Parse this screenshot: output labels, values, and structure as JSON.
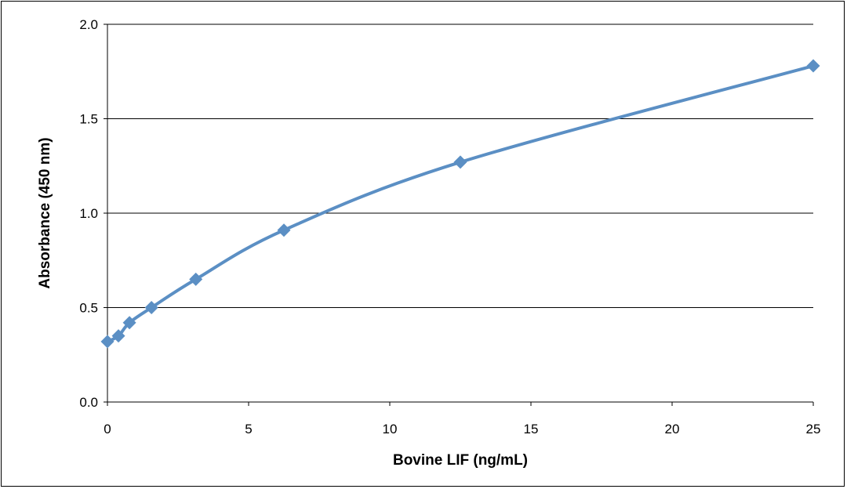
{
  "chart_data": {
    "type": "scatter",
    "title": "",
    "xlabel": "Bovine LIF (ng/mL)",
    "ylabel": "Absorbance  (450 nm)",
    "xlim": [
      0,
      25
    ],
    "ylim": [
      0,
      2.0
    ],
    "x_ticks": [
      "0",
      "5",
      "10",
      "15",
      "20",
      "25"
    ],
    "y_ticks": [
      "0.0",
      "0.5",
      "1.0",
      "1.5",
      "2.0"
    ],
    "grid": "horizontal major gridlines",
    "legend": "none",
    "series": [
      {
        "x": [
          0,
          0.39,
          0.78,
          1.56,
          3.13,
          6.25,
          12.5,
          25
        ],
        "y": [
          0.32,
          0.35,
          0.42,
          0.5,
          0.65,
          0.91,
          1.27,
          1.78
        ],
        "color": "#5b8fc4",
        "marker": "diamond",
        "line": "smoothed"
      }
    ]
  }
}
